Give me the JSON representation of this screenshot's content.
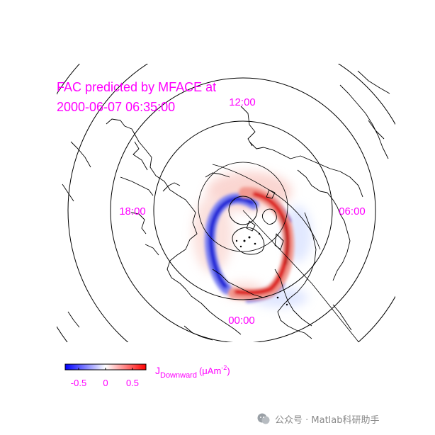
{
  "chart_data": {
    "type": "heatmap",
    "projection": "polar-stereographic (north pole)",
    "title_lines": [
      "FAC predicted by MFACE at",
      "2000-06-07 06:35:00"
    ],
    "local_time_labels": [
      "12:00",
      "18:00",
      "06:00",
      "00:00"
    ],
    "colorbar": {
      "ticks": [
        "-0.5",
        "0",
        "0.5"
      ],
      "label_main": "J",
      "label_sub": "Downward",
      "label_unit": "(μAm",
      "label_sup": "-2",
      "label_close": ")",
      "range": [
        -0.75,
        0.75
      ],
      "colormap": [
        "#0000ff",
        "#ffffff",
        "#ff0000"
      ]
    },
    "features": {
      "negative_current": "thin blue arc on the dusk (18:00) side of the auroral oval",
      "positive_current": "red arc on the dawn (06:00) side of the auroral oval",
      "coastlines": "black outlines of northern continents"
    }
  },
  "watermark": {
    "text": "公众号 · Matlab科研助手",
    "logo_color": "#9aa0a6"
  }
}
